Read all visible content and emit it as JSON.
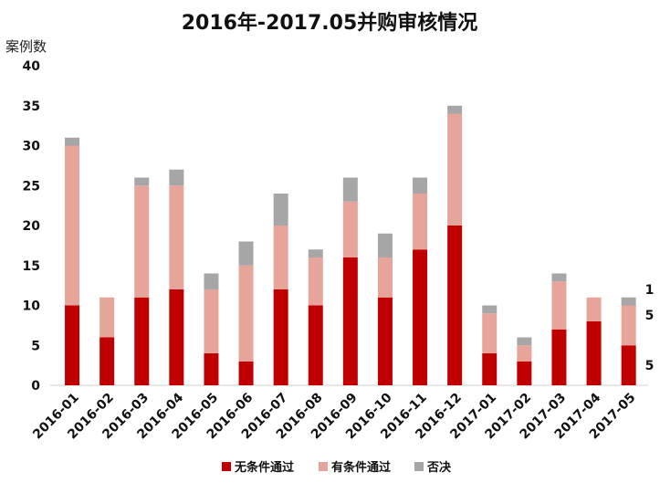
{
  "chart_data": {
    "type": "bar",
    "stacked": true,
    "title": "2016年-2017.05并购审核情况",
    "ylabel": "案例数",
    "xlabel": "",
    "ylim": [
      0,
      40
    ],
    "yticks": [
      0,
      5,
      10,
      15,
      20,
      25,
      30,
      35,
      40
    ],
    "grid": false,
    "legend_position": "bottom",
    "categories": [
      "2016-01",
      "2016-02",
      "2016-03",
      "2016-04",
      "2016-05",
      "2016-06",
      "2016-07",
      "2016-08",
      "2016-09",
      "2016-10",
      "2016-11",
      "2016-12",
      "2017-01",
      "2017-02",
      "2017-03",
      "2017-04",
      "2017-05"
    ],
    "series": [
      {
        "name": "无条件通过",
        "color": "#c00000",
        "values": [
          10,
          6,
          11,
          12,
          4,
          3,
          12,
          10,
          16,
          11,
          17,
          20,
          4,
          3,
          7,
          8,
          5
        ]
      },
      {
        "name": "有条件通过",
        "color": "#e6a49a",
        "values": [
          20,
          5,
          14,
          13,
          8,
          12,
          8,
          6,
          7,
          5,
          7,
          14,
          5,
          2,
          6,
          3,
          5
        ]
      },
      {
        "name": "否决",
        "color": "#a6a6a6",
        "values": [
          1,
          0,
          1,
          2,
          2,
          3,
          4,
          1,
          3,
          3,
          2,
          1,
          1,
          1,
          1,
          0,
          1
        ]
      }
    ],
    "annotations": [
      "1",
      "5",
      "5"
    ]
  }
}
